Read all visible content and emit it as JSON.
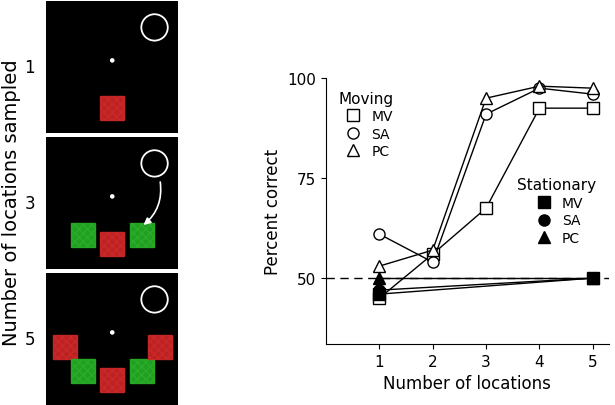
{
  "chart_data": {
    "type": "line",
    "xlabel": "Number of locations",
    "ylabel": "Percent correct",
    "xlim": [
      0,
      5.3
    ],
    "xticks": [
      1,
      2,
      3,
      4,
      5
    ],
    "ylim": [
      33.5,
      100
    ],
    "yticks": [
      50,
      75,
      100
    ],
    "hline": 50,
    "grid": false,
    "groups": [
      {
        "title": "Moving",
        "legend": "upper left",
        "series": [
          {
            "name": "MV",
            "color": "#000000",
            "marker": "square-open",
            "x": [
              1,
              2,
              3,
              4,
              5
            ],
            "values": [
              45,
              56,
              67.5,
              92.5,
              92.5
            ]
          },
          {
            "name": "SA",
            "color": "#000000",
            "marker": "circle-open",
            "x": [
              1,
              2,
              3,
              4,
              5
            ],
            "values": [
              61,
              54,
              91,
              97.5,
              96
            ]
          },
          {
            "name": "PC",
            "color": "#000000",
            "marker": "triangle-open",
            "x": [
              1,
              2,
              3,
              4,
              5
            ],
            "values": [
              53,
              57,
              95,
              98,
              97.5
            ]
          }
        ]
      },
      {
        "title": "Stationary",
        "legend": "center right",
        "series": [
          {
            "name": "MV",
            "color": "#000000",
            "marker": "square-filled",
            "x": [
              1,
              5
            ],
            "values": [
              46,
              50
            ]
          },
          {
            "name": "SA",
            "color": "#000000",
            "marker": "circle-filled",
            "x": [
              1,
              5
            ],
            "values": [
              47,
              50
            ]
          },
          {
            "name": "PC",
            "color": "#000000",
            "marker": "triangle-filled",
            "x": [
              1,
              5
            ],
            "values": [
              50,
              50
            ]
          }
        ]
      }
    ]
  },
  "stimulus_panels": {
    "label": "Number of locations sampled",
    "panels": [
      {
        "label": "1",
        "colors": [
          "#d02828"
        ]
      },
      {
        "label": "3",
        "colors": [
          "#28b028",
          "#d02828",
          "#28b028"
        ]
      },
      {
        "label": "5",
        "colors": [
          "#d02828",
          "#28b028",
          "#d02828",
          "#28b028",
          "#d02828"
        ]
      }
    ]
  }
}
